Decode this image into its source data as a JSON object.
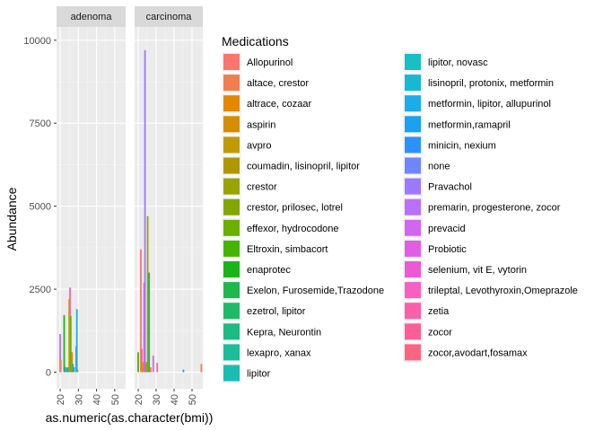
{
  "chart_data": {
    "type": "bar",
    "xlabel": "as.numeric(as.character(bmi))",
    "ylabel": "Abundance",
    "xlim": [
      18,
      56
    ],
    "ylim": [
      -500,
      10400
    ],
    "x_ticks": [
      20,
      30,
      40,
      50
    ],
    "y_ticks": [
      0,
      2500,
      5000,
      7500,
      10000
    ],
    "y_tick_labels": [
      "0",
      "2500",
      "5000",
      "7500",
      "10000"
    ],
    "legend": {
      "title": "Medications",
      "position": "right"
    },
    "series": [
      {
        "name": "Allopurinol",
        "color": "#F8766D"
      },
      {
        "name": "altace, crestor",
        "color": "#F07E4F"
      },
      {
        "name": "altrace, cozaar",
        "color": "#E58700"
      },
      {
        "name": "aspirin",
        "color": "#D58E00"
      },
      {
        "name": "avpro",
        "color": "#C09A00"
      },
      {
        "name": "coumadin, lisinopril, lipitor",
        "color": "#AD9800"
      },
      {
        "name": "crestor",
        "color": "#9AA300"
      },
      {
        "name": "crestor, prilosec, lotrel",
        "color": "#84A600"
      },
      {
        "name": "effexor, hydrocodone",
        "color": "#6BAF00"
      },
      {
        "name": "Eltroxin, simbacort",
        "color": "#44B500"
      },
      {
        "name": "enaprotec",
        "color": "#1BB51B"
      },
      {
        "name": "Exelon, Furosemide,Trazodone",
        "color": "#1FB84C"
      },
      {
        "name": "ezetrol, lipitor",
        "color": "#1EBA6A"
      },
      {
        "name": "Kepra, Neurontin",
        "color": "#1CBB83"
      },
      {
        "name": "lexapro, xanax",
        "color": "#1BBD9A"
      },
      {
        "name": "lipitor",
        "color": "#19BDB0"
      },
      {
        "name": "lipitor, novasc",
        "color": "#18BFC4"
      },
      {
        "name": "lisinopril, protonix, metformin",
        "color": "#17B8D6"
      },
      {
        "name": "metformin, lipitor, allupurinol",
        "color": "#1AADE9"
      },
      {
        "name": "metformin,ramapril",
        "color": "#1CA0F0"
      },
      {
        "name": "minicin, nexium",
        "color": "#2B92FA"
      },
      {
        "name": "none",
        "color": "#6F86FC"
      },
      {
        "name": "Pravachol",
        "color": "#9C7AFC"
      },
      {
        "name": "premarin, progesterone, zocor",
        "color": "#B970FA"
      },
      {
        "name": "prevacid",
        "color": "#D266F0"
      },
      {
        "name": "Probiotic",
        "color": "#E05EE3"
      },
      {
        "name": "selenium, vit E, vytorin",
        "color": "#EE58D3"
      },
      {
        "name": "trileptal, Levothyroxin,Omeprazole",
        "color": "#F660C0"
      },
      {
        "name": "zetia",
        "color": "#FA5FAA"
      },
      {
        "name": "zocor",
        "color": "#FB5E95"
      },
      {
        "name": "zocor,avodart,fosamax",
        "color": "#FA6680"
      }
    ],
    "panels": [
      {
        "label": "adenoma",
        "bars": [
          {
            "x": 20.0,
            "value": 1150,
            "s": 23
          },
          {
            "x": 20.3,
            "value": 380,
            "s": 0
          },
          {
            "x": 22.2,
            "value": 1720,
            "s": 10
          },
          {
            "x": 23.0,
            "value": 160,
            "s": 21
          },
          {
            "x": 23.5,
            "value": 120,
            "s": 17
          },
          {
            "x": 24.2,
            "value": 150,
            "s": 20
          },
          {
            "x": 25.0,
            "value": 2200,
            "s": 4
          },
          {
            "x": 25.4,
            "value": 2550,
            "s": 28
          },
          {
            "x": 25.8,
            "value": 1700,
            "s": 8
          },
          {
            "x": 26.5,
            "value": 600,
            "s": 2
          },
          {
            "x": 27.0,
            "value": 250,
            "s": 13
          },
          {
            "x": 27.6,
            "value": 150,
            "s": 19
          },
          {
            "x": 28.8,
            "value": 780,
            "s": 21
          },
          {
            "x": 29.2,
            "value": 1900,
            "s": 18
          },
          {
            "x": 29.6,
            "value": 80,
            "s": 6
          }
        ]
      },
      {
        "label": "carcinoma",
        "bars": [
          {
            "x": 20.0,
            "value": 600,
            "s": 9
          },
          {
            "x": 21.5,
            "value": 3700,
            "s": 0
          },
          {
            "x": 22.0,
            "value": 700,
            "s": 29
          },
          {
            "x": 22.4,
            "value": 300,
            "s": 2
          },
          {
            "x": 23.3,
            "value": 2700,
            "s": 26
          },
          {
            "x": 23.8,
            "value": 9700,
            "s": 22
          },
          {
            "x": 24.6,
            "value": 300,
            "s": 5
          },
          {
            "x": 25.3,
            "value": 4700,
            "s": 6
          },
          {
            "x": 26.1,
            "value": 3000,
            "s": 11
          },
          {
            "x": 27.0,
            "value": 150,
            "s": 1
          },
          {
            "x": 28.4,
            "value": 500,
            "s": 24
          },
          {
            "x": 30.6,
            "value": 280,
            "s": 28
          },
          {
            "x": 45.2,
            "value": 80,
            "s": 19
          },
          {
            "x": 55.2,
            "value": 250,
            "s": 1
          }
        ]
      }
    ]
  }
}
